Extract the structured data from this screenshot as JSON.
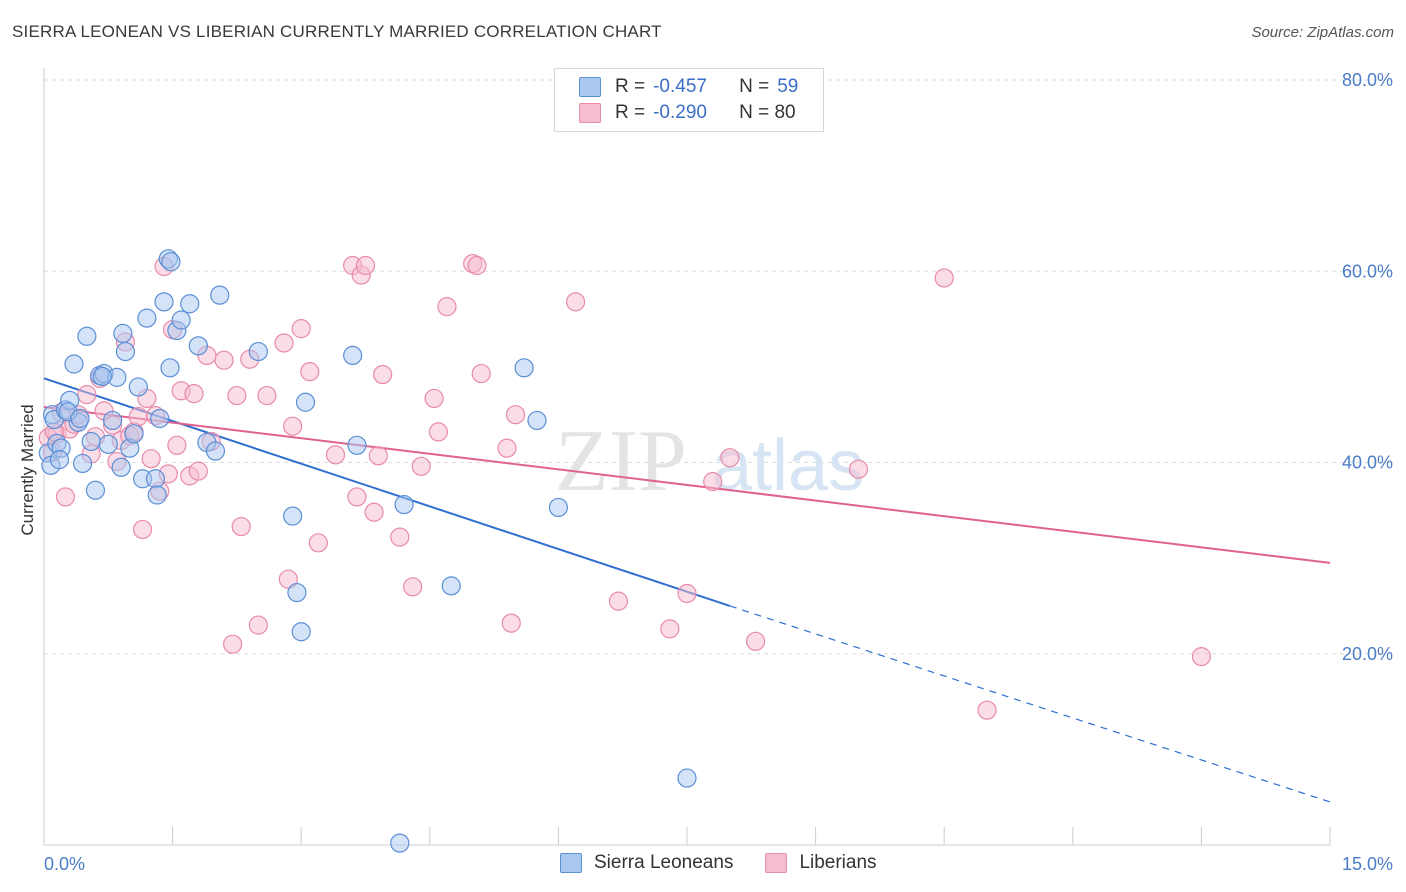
{
  "title": "SIERRA LEONEAN VS LIBERIAN CURRENTLY MARRIED CORRELATION CHART",
  "source": "Source: ZipAtlas.com",
  "watermark": "ZIPatlas",
  "colors": {
    "blue_fill": "#aac8f0",
    "blue_stroke": "#5b8fd6",
    "blue_line": "#2f6fd0",
    "pink_fill": "#f6bcd0",
    "pink_stroke": "#e88aab",
    "pink_line": "#e0628f",
    "tick_text": "#4a7cc7"
  },
  "legend": {
    "rows": [
      {
        "r_label": "R =",
        "r_value": "-0.457",
        "n_label": "N =",
        "n_value": "59"
      },
      {
        "r_label": "R =",
        "r_value": "-0.290",
        "n_label": "N = 80",
        "n_value": ""
      }
    ]
  },
  "bottom_legend": [
    "Sierra Leoneans",
    "Liberians"
  ],
  "chart_data": {
    "type": "scatter",
    "title": "SIERRA LEONEAN VS LIBERIAN CURRENTLY MARRIED CORRELATION CHART",
    "xlabel": "",
    "ylabel": "Currently Married",
    "xlim": [
      0,
      15
    ],
    "ylim": [
      0,
      80
    ],
    "x_tick_labels": [
      "0.0%",
      "15.0%"
    ],
    "y_ticks": [
      20,
      40,
      60,
      80
    ],
    "y_tick_labels": [
      "20.0%",
      "40.0%",
      "60.0%",
      "80.0%"
    ],
    "grid": true,
    "legend_position": "top-center",
    "series": [
      {
        "name": "Sierra Leoneans",
        "r": -0.457,
        "n": 59,
        "trend": {
          "x0": 0,
          "y0": 48.8,
          "x1": 8.0,
          "y1": 25.0,
          "dashed_to_x": 15,
          "dashed_to_y": 4.5
        },
        "points": [
          [
            0.05,
            41.0
          ],
          [
            0.08,
            39.7
          ],
          [
            0.1,
            45.0
          ],
          [
            0.12,
            44.5
          ],
          [
            0.15,
            42.0
          ],
          [
            0.2,
            41.5
          ],
          [
            0.25,
            45.5
          ],
          [
            0.3,
            46.5
          ],
          [
            0.35,
            50.3
          ],
          [
            0.4,
            44.2
          ],
          [
            0.45,
            39.9
          ],
          [
            0.5,
            53.2
          ],
          [
            0.55,
            42.2
          ],
          [
            0.6,
            37.1
          ],
          [
            0.65,
            49.1
          ],
          [
            0.7,
            49.3
          ],
          [
            0.75,
            41.9
          ],
          [
            0.8,
            44.4
          ],
          [
            0.85,
            48.9
          ],
          [
            0.9,
            39.5
          ],
          [
            0.92,
            53.5
          ],
          [
            0.95,
            51.6
          ],
          [
            1.0,
            41.5
          ],
          [
            1.05,
            43.0
          ],
          [
            1.1,
            47.9
          ],
          [
            1.15,
            38.3
          ],
          [
            1.2,
            55.1
          ],
          [
            1.3,
            38.3
          ],
          [
            1.32,
            36.6
          ],
          [
            1.35,
            44.6
          ],
          [
            1.4,
            56.8
          ],
          [
            1.45,
            61.3
          ],
          [
            1.47,
            49.9
          ],
          [
            1.55,
            53.8
          ],
          [
            1.6,
            54.9
          ],
          [
            1.7,
            56.6
          ],
          [
            1.8,
            52.2
          ],
          [
            1.9,
            42.1
          ],
          [
            2.0,
            41.2
          ],
          [
            2.05,
            57.5
          ],
          [
            2.5,
            51.6
          ],
          [
            2.9,
            34.4
          ],
          [
            2.95,
            26.4
          ],
          [
            3.0,
            22.3
          ],
          [
            3.05,
            46.3
          ],
          [
            3.6,
            51.2
          ],
          [
            3.65,
            41.8
          ],
          [
            4.2,
            35.6
          ],
          [
            4.75,
            27.1
          ],
          [
            4.15,
            0.2
          ],
          [
            5.6,
            49.9
          ],
          [
            5.75,
            44.4
          ],
          [
            6.0,
            35.3
          ],
          [
            7.5,
            7.0
          ],
          [
            0.18,
            40.3
          ],
          [
            0.28,
            45.3
          ],
          [
            0.42,
            44.6
          ],
          [
            1.48,
            61.0
          ],
          [
            0.68,
            49.0
          ]
        ]
      },
      {
        "name": "Liberians",
        "r": -0.29,
        "n": 80,
        "trend": {
          "x0": 0,
          "y0": 45.8,
          "x1": 15,
          "y1": 29.5
        },
        "points": [
          [
            0.05,
            42.6
          ],
          [
            0.1,
            41.1
          ],
          [
            0.15,
            43.0
          ],
          [
            0.2,
            45.2
          ],
          [
            0.25,
            36.4
          ],
          [
            0.3,
            43.5
          ],
          [
            0.35,
            44.0
          ],
          [
            0.4,
            45.0
          ],
          [
            0.5,
            47.1
          ],
          [
            0.55,
            40.9
          ],
          [
            0.6,
            42.7
          ],
          [
            0.65,
            48.8
          ],
          [
            0.7,
            45.4
          ],
          [
            0.8,
            43.9
          ],
          [
            0.85,
            40.1
          ],
          [
            0.9,
            42.3
          ],
          [
            0.95,
            52.6
          ],
          [
            1.0,
            42.8
          ],
          [
            1.05,
            43.2
          ],
          [
            1.1,
            44.8
          ],
          [
            1.15,
            33.0
          ],
          [
            1.2,
            46.7
          ],
          [
            1.25,
            40.4
          ],
          [
            1.3,
            44.9
          ],
          [
            1.35,
            37.0
          ],
          [
            1.4,
            60.5
          ],
          [
            1.45,
            38.8
          ],
          [
            1.5,
            53.9
          ],
          [
            1.55,
            41.8
          ],
          [
            1.6,
            47.5
          ],
          [
            1.7,
            38.6
          ],
          [
            1.75,
            47.2
          ],
          [
            1.8,
            39.1
          ],
          [
            1.9,
            51.2
          ],
          [
            1.95,
            42.2
          ],
          [
            2.1,
            50.7
          ],
          [
            2.2,
            21.0
          ],
          [
            2.25,
            47.0
          ],
          [
            2.3,
            33.3
          ],
          [
            2.4,
            50.8
          ],
          [
            2.5,
            23.0
          ],
          [
            2.6,
            47.0
          ],
          [
            2.8,
            52.5
          ],
          [
            2.85,
            27.8
          ],
          [
            2.9,
            43.8
          ],
          [
            3.0,
            54.0
          ],
          [
            3.1,
            49.5
          ],
          [
            3.2,
            31.6
          ],
          [
            3.4,
            40.8
          ],
          [
            3.6,
            60.6
          ],
          [
            3.65,
            36.4
          ],
          [
            3.7,
            59.6
          ],
          [
            3.75,
            60.6
          ],
          [
            3.85,
            34.8
          ],
          [
            3.9,
            40.7
          ],
          [
            3.95,
            49.2
          ],
          [
            4.15,
            32.2
          ],
          [
            4.3,
            27.0
          ],
          [
            4.4,
            39.6
          ],
          [
            4.55,
            46.7
          ],
          [
            4.6,
            43.2
          ],
          [
            4.7,
            56.3
          ],
          [
            5.0,
            60.8
          ],
          [
            5.05,
            60.6
          ],
          [
            5.1,
            49.3
          ],
          [
            5.4,
            41.5
          ],
          [
            5.5,
            45.0
          ],
          [
            5.45,
            23.2
          ],
          [
            6.2,
            56.8
          ],
          [
            6.7,
            25.5
          ],
          [
            7.3,
            22.6
          ],
          [
            7.5,
            26.3
          ],
          [
            7.8,
            38.0
          ],
          [
            8.0,
            40.5
          ],
          [
            8.3,
            21.3
          ],
          [
            9.5,
            39.3
          ],
          [
            10.5,
            59.3
          ],
          [
            11.0,
            14.1
          ],
          [
            13.5,
            19.7
          ],
          [
            0.12,
            43.2
          ]
        ]
      }
    ]
  }
}
